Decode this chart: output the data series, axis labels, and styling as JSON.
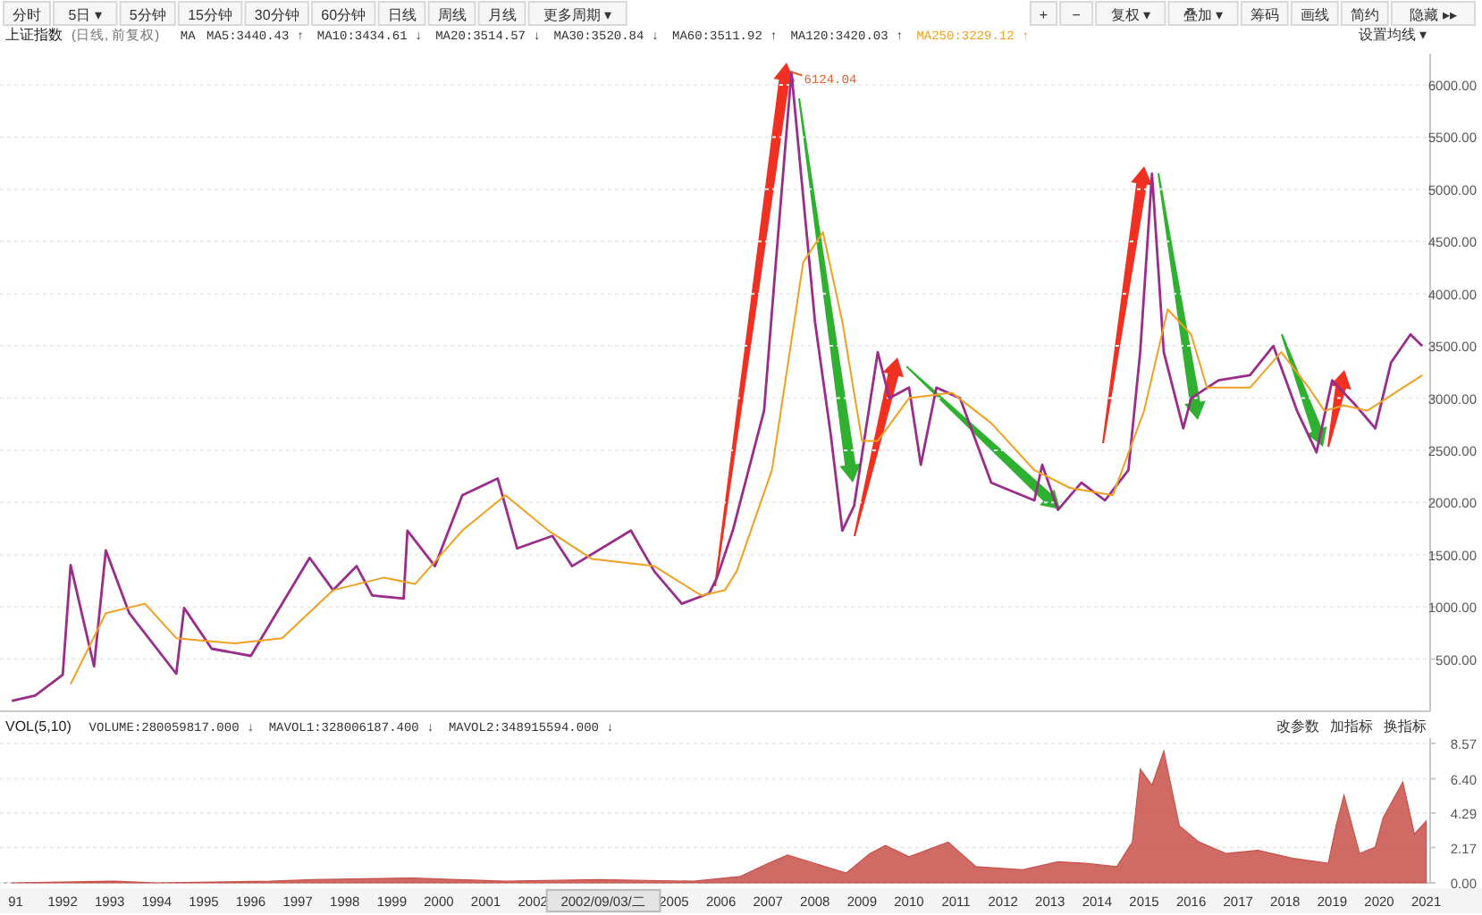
{
  "chart_data": [
    {
      "type": "other",
      "annotations": [
        "分时",
        "5日 ▾",
        "5分钟",
        "15分钟",
        "30分钟",
        "60分钟",
        "日线",
        "周线",
        "月线",
        "更多周期 ▾"
      ]
    },
    {
      "type": "other",
      "annotations": [
        "+",
        "−",
        "复权 ▾",
        "叠加 ▾",
        "筹码",
        "画线",
        "简约",
        "隐藏 ▸▸"
      ]
    },
    {
      "type": "line",
      "title": "上证指数",
      "subtitle": "(日线, 前复权)",
      "annotations": [
        "MA",
        "MA5:3440.43 ↑",
        "MA10:3434.61 ↓",
        "MA20:3514.57 ↓",
        "MA30:3520.84 ↓",
        "MA60:3511.92 ↑",
        "MA120:3420.03 ↑",
        "设置均线 ▾",
        {
          "text": "6124.04",
          "x": "2007-07",
          "y": 6124
        }
      ],
      "series": [
        {
          "color": "#9b2d8a",
          "x": [
            "1990-12",
            "1991-06",
            "1992-01",
            "1992-03",
            "1992-09",
            "1992-12",
            "1993-06",
            "1994-06",
            "1994-08",
            "1995-03",
            "1996-01",
            "1997-04",
            "1997-10",
            "1998-04",
            "1998-08",
            "1999-04",
            "1999-05",
            "1999-12",
            "2000-07",
            "2001-04",
            "2001-09",
            "2002-06",
            "2002-11",
            "2004-02",
            "2004-08",
            "2005-03",
            "2005-10",
            "2005-12",
            "2006-04",
            "2006-12",
            "2007-03",
            "2007-07",
            "2008-01",
            "2008-05",
            "2008-08",
            "2008-11",
            "2009-05",
            "2009-08",
            "2010-01",
            "2010-04",
            "2010-08",
            "2011-02",
            "2011-10",
            "2012-09",
            "2012-11",
            "2013-03",
            "2013-09",
            "2014-03",
            "2014-09",
            "2014-12",
            "2015-03",
            "2015-06",
            "2015-11",
            "2016-01",
            "2016-08",
            "2017-04",
            "2017-10",
            "2018-04",
            "2018-09",
            "2019-01",
            "2019-07",
            "2019-12",
            "2020-04",
            "2020-09",
            "2020-12"
          ],
          "values": [
            100,
            150,
            350,
            1400,
            430,
            1540,
            940,
            360,
            990,
            600,
            530,
            1470,
            1160,
            1390,
            1110,
            1080,
            1730,
            1390,
            2070,
            2230,
            1560,
            1680,
            1390,
            1730,
            1340,
            1030,
            1130,
            1280,
            1730,
            2880,
            4300,
            6124,
            3730,
            2650,
            1730,
            1970,
            3440,
            3000,
            3100,
            2360,
            3100,
            3000,
            2190,
            2020,
            2360,
            1930,
            2190,
            2020,
            2310,
            3440,
            5150,
            3440,
            2710,
            3000,
            3170,
            3220,
            3500,
            2880,
            2480,
            3170,
            2930,
            2710,
            3340,
            3610,
            3500
          ]
        },
        {
          "name": "MA250:3229.12 ↑",
          "color": "#f0a020",
          "x": [
            "1992-03",
            "1992-12",
            "1993-10",
            "1994-06",
            "1995-09",
            "1996-09",
            "1997-10",
            "1998-11",
            "1999-07",
            "2000-07",
            "2001-06",
            "2002-05",
            "2003-04",
            "2004-08",
            "2005-08",
            "2006-02",
            "2006-05",
            "2007-02",
            "2007-10",
            "2008-03",
            "2008-08",
            "2009-01",
            "2009-05",
            "2010-01",
            "2010-12",
            "2011-10",
            "2012-09",
            "2013-06",
            "2014-05",
            "2015-01",
            "2015-07",
            "2016-01",
            "2016-05",
            "2017-04",
            "2017-12",
            "2018-07",
            "2018-11",
            "2019-04",
            "2019-10",
            "2020-12"
          ],
          "values": [
            260,
            940,
            1030,
            700,
            650,
            700,
            1160,
            1280,
            1220,
            1730,
            2070,
            1730,
            1460,
            1390,
            1110,
            1160,
            1340,
            2310,
            4300,
            4590,
            3730,
            2590,
            2590,
            3000,
            3050,
            2760,
            2310,
            2140,
            2070,
            2880,
            3850,
            3610,
            3100,
            3100,
            3440,
            3100,
            2880,
            2930,
            2880,
            3220
          ]
        }
      ],
      "xlim": [
        "1990-09",
        "2021-02"
      ],
      "ylim": [
        0,
        6300
      ],
      "yticks": [
        {
          "value": 500,
          "label": "500.00"
        },
        {
          "value": 1000,
          "label": "1000.00"
        },
        {
          "value": 1500,
          "label": "1500.00"
        },
        {
          "value": 2000,
          "label": "2000.00"
        },
        {
          "value": 2500,
          "label": "2500.00"
        },
        {
          "value": 3000,
          "label": "3000.00"
        },
        {
          "value": 3500,
          "label": "3500.00"
        },
        {
          "value": 4000,
          "label": "4000.00"
        },
        {
          "value": 4500,
          "label": "4500.00"
        },
        {
          "value": 5000,
          "label": "5000.00"
        },
        {
          "value": 5500,
          "label": "5500.00"
        },
        {
          "value": 6000,
          "label": "6000.00"
        }
      ],
      "tick_labels": "y",
      "grid": "y",
      "legend": "top"
    },
    {
      "type": "area",
      "title": "VOL(5,10)",
      "annotations": [
        "VOLUME:280059817.000 ↓",
        "MAVOL1:328006187.400 ↓",
        "MAVOL2:348915594.000 ↓",
        "改参数",
        "加指标",
        "换指标",
        "2002/09/03/二"
      ],
      "series": [
        {
          "color": "#c8504a",
          "x": [
            "1990-12",
            "1993-02",
            "1994-01",
            "1996-06",
            "1997-05",
            "1999-06",
            "2000-06",
            "2001-06",
            "2003-06",
            "2005-06",
            "2006-06",
            "2007-01",
            "2007-06",
            "2008-01",
            "2008-09",
            "2009-03",
            "2009-07",
            "2010-01",
            "2010-11",
            "2011-06",
            "2012-06",
            "2013-03",
            "2013-10",
            "2014-06",
            "2014-10",
            "2014-12",
            "2015-03",
            "2015-06",
            "2015-10",
            "2016-03",
            "2016-10",
            "2017-06",
            "2018-03",
            "2018-12",
            "2019-02",
            "2019-04",
            "2019-08",
            "2019-12",
            "2020-02",
            "2020-07",
            "2020-10",
            "2021-01"
          ],
          "values": [
            0,
            0.1,
            0,
            0.1,
            0.2,
            0.3,
            0.2,
            0.1,
            0.2,
            0.1,
            0.4,
            1.2,
            1.7,
            1.2,
            0.6,
            1.8,
            2.3,
            1.6,
            2.5,
            1.0,
            0.8,
            1.3,
            1.2,
            1.0,
            2.5,
            7.0,
            6.0,
            8.1,
            3.5,
            2.5,
            1.8,
            2.0,
            1.5,
            1.2,
            3.5,
            5.4,
            1.8,
            2.2,
            4.0,
            6.2,
            3.0,
            3.8
          ]
        }
      ],
      "xlim": [
        "1990-09",
        "2021-02"
      ],
      "ylim": [
        0,
        8.9
      ],
      "yticks": [
        {
          "value": 0,
          "label": "0.00"
        },
        2.17,
        4.29,
        {
          "value": 6.4,
          "label": "6.40"
        },
        8.57
      ],
      "xticks": [
        {
          "value": "1991",
          "label": "91"
        },
        "1992",
        "1993",
        "1994",
        "1995",
        "1996",
        "1997",
        "1998",
        "1999",
        "2000",
        "2001",
        "2002",
        "2005",
        "2006",
        "2007",
        "2008",
        "2009",
        "2010",
        "2011",
        "2012",
        "2013",
        "2014",
        "2015",
        "2016",
        "2017",
        "2018",
        "2019",
        "2020",
        "2021"
      ],
      "grid": "y"
    }
  ]
}
